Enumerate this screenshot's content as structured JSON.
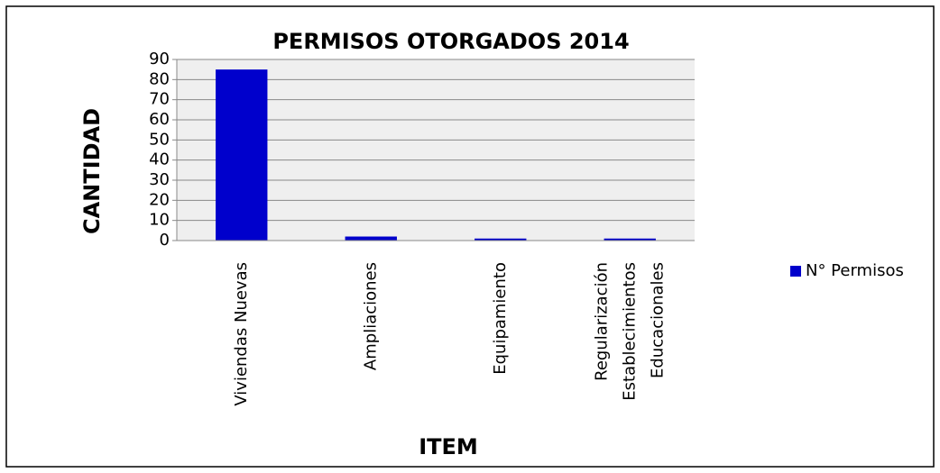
{
  "chart_data": {
    "type": "bar",
    "title": "PERMISOS OTORGADOS 2014",
    "x_label": "ITEM",
    "y_label": "CANTIDAD",
    "categories": [
      "Viviendas Nuevas",
      "Ampliaciones",
      "Equipamiento",
      "Regularización Establecimientos Educacionales"
    ],
    "series": [
      {
        "name": "N° Permisos",
        "color": "#0000cc",
        "values": [
          85,
          2,
          1,
          1
        ]
      }
    ],
    "ylim": [
      0,
      90
    ],
    "yticks": [
      0,
      10,
      20,
      30,
      40,
      50,
      60,
      70,
      80,
      90
    ],
    "grid": true,
    "legend": "right"
  }
}
